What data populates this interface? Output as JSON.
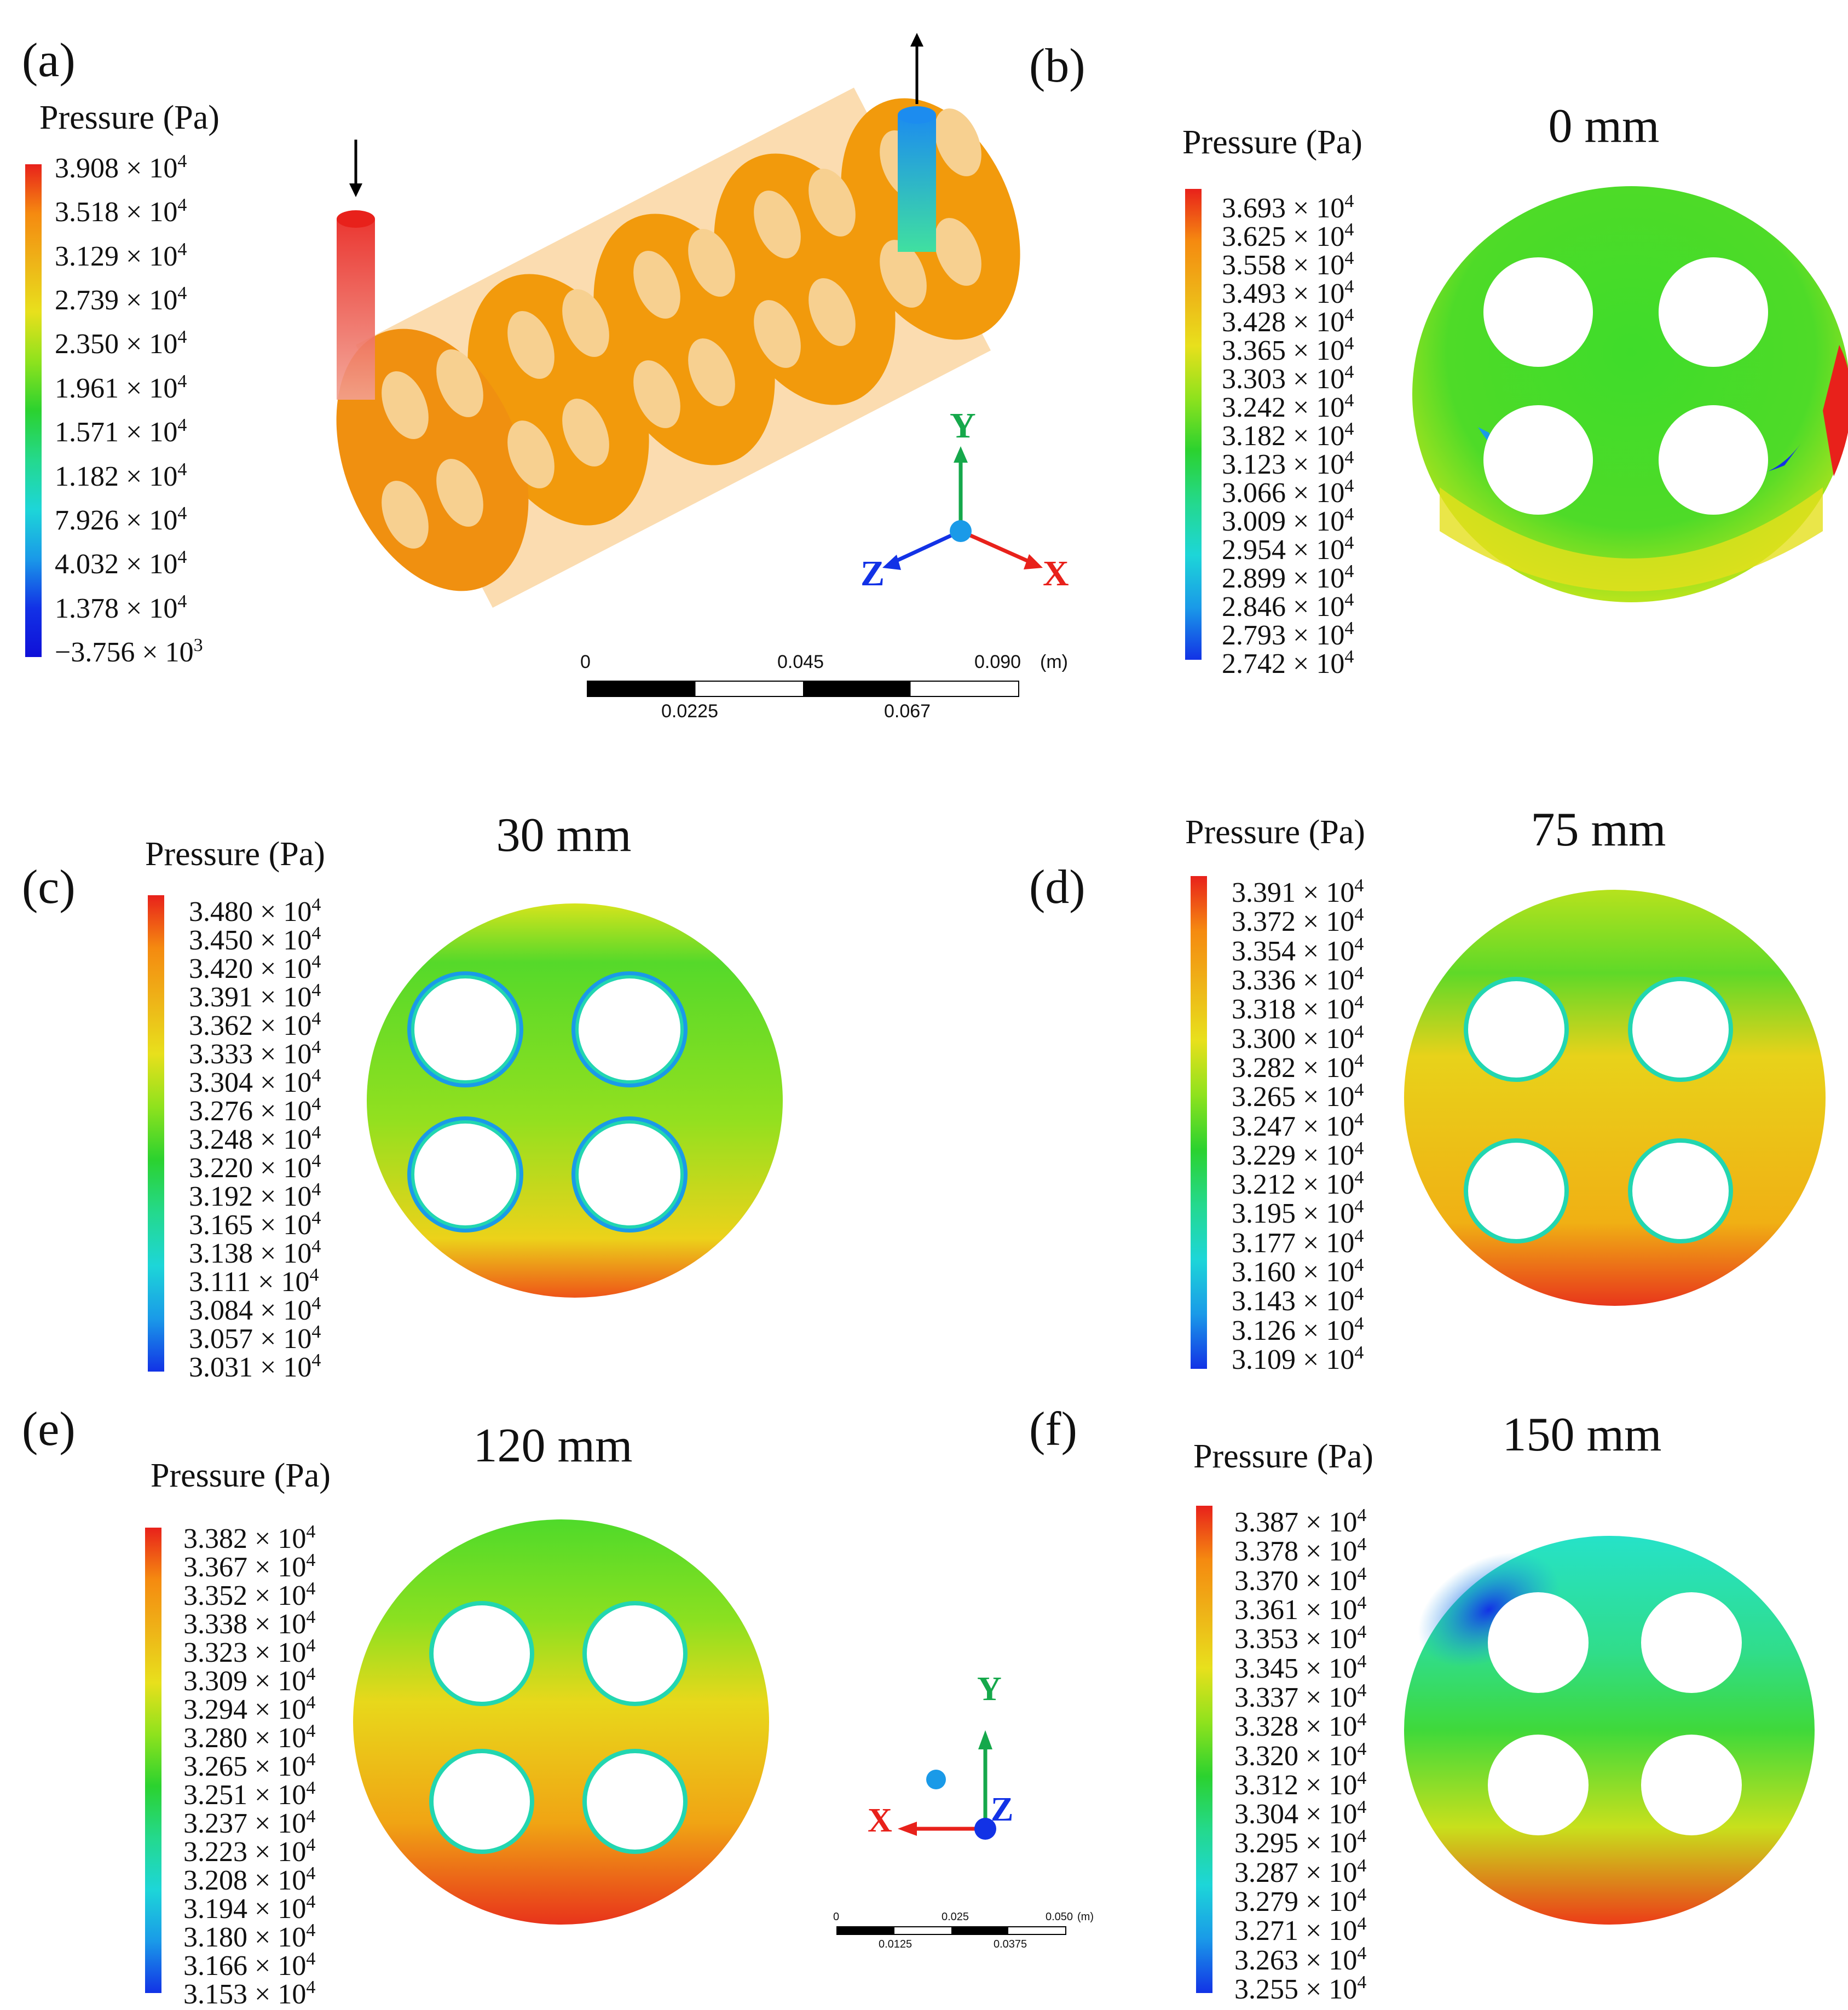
{
  "units_label": "Pressure (Pa)",
  "exp_label": "× 10",
  "panels": {
    "a": {
      "label": "(a)",
      "ticks": [
        "3.908",
        "3.518",
        "3.129",
        "2.739",
        "2.350",
        "1.961",
        "1.571",
        "1.182",
        "7.926",
        "4.032",
        "1.378",
        "−3.756"
      ],
      "exps": [
        "4",
        "4",
        "4",
        "4",
        "4",
        "4",
        "4",
        "4",
        "4",
        "4",
        "4",
        "3"
      ]
    },
    "b": {
      "label": "(b)",
      "title": "0 mm",
      "ticks": [
        "3.693",
        "3.625",
        "3.558",
        "3.493",
        "3.428",
        "3.365",
        "3.303",
        "3.242",
        "3.182",
        "3.123",
        "3.066",
        "3.009",
        "2.954",
        "2.899",
        "2.846",
        "2.793",
        "2.742"
      ]
    },
    "c": {
      "label": "(c)",
      "title": "30 mm",
      "ticks": [
        "3.480",
        "3.450",
        "3.420",
        "3.391",
        "3.362",
        "3.333",
        "3.304",
        "3.276",
        "3.248",
        "3.220",
        "3.192",
        "3.165",
        "3.138",
        "3.111",
        "3.084",
        "3.057",
        "3.031"
      ]
    },
    "d": {
      "label": "(d)",
      "title": "75 mm",
      "ticks": [
        "3.391",
        "3.372",
        "3.354",
        "3.336",
        "3.318",
        "3.300",
        "3.282",
        "3.265",
        "3.247",
        "3.229",
        "3.212",
        "3.195",
        "3.177",
        "3.160",
        "3.143",
        "3.126",
        "3.109"
      ]
    },
    "e": {
      "label": "(e)",
      "title": "120 mm",
      "ticks": [
        "3.382",
        "3.367",
        "3.352",
        "3.338",
        "3.323",
        "3.309",
        "3.294",
        "3.280",
        "3.265",
        "3.251",
        "3.237",
        "3.223",
        "3.208",
        "3.194",
        "3.180",
        "3.166",
        "3.153"
      ]
    },
    "f": {
      "label": "(f)",
      "title": "150 mm",
      "ticks": [
        "3.387",
        "3.378",
        "3.370",
        "3.361",
        "3.353",
        "3.345",
        "3.337",
        "3.328",
        "3.320",
        "3.312",
        "3.304",
        "3.295",
        "3.287",
        "3.279",
        "3.271",
        "3.263",
        "3.255"
      ]
    }
  },
  "scale_main": {
    "top": [
      "0",
      "0.045",
      "0.090"
    ],
    "unit": "(m)",
    "bottom": [
      "0.0225",
      "0.067"
    ]
  },
  "scale_small": {
    "top": [
      "0",
      "0.025",
      "0.050"
    ],
    "unit": "(m)",
    "bottom": [
      "0.0125",
      "0.0375"
    ]
  },
  "axes": {
    "x": "X",
    "y": "Y",
    "z": "Z"
  },
  "colors": {
    "red": "#e8211b",
    "orange": "#f29a0c",
    "yellow": "#eee21c",
    "green": "#33d632",
    "cyan": "#1de3e0",
    "blue": "#1232e6"
  }
}
